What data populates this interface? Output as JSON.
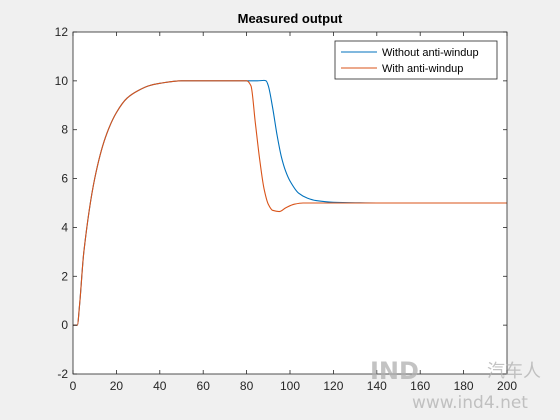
{
  "chart_data": {
    "type": "line",
    "title": "Measured output",
    "xlabel": "",
    "ylabel": "",
    "xlim": [
      0,
      200
    ],
    "ylim": [
      -2,
      12
    ],
    "x_ticks": [
      0,
      20,
      40,
      60,
      80,
      100,
      120,
      140,
      160,
      180,
      200
    ],
    "y_ticks": [
      -2,
      0,
      2,
      4,
      6,
      8,
      10,
      12
    ],
    "grid": false,
    "legend_position": "top-right",
    "series": [
      {
        "name": "Without anti-windup",
        "color": "#0072BD",
        "x": [
          0,
          2,
          3,
          5,
          10,
          15,
          20,
          25,
          30,
          35,
          40,
          50,
          60,
          70,
          80,
          85,
          88,
          89,
          90,
          92,
          94,
          96,
          98,
          100,
          104,
          108,
          112,
          120,
          130,
          140,
          150,
          200
        ],
        "y": [
          0,
          0,
          0.8,
          3.0,
          6.0,
          7.7,
          8.7,
          9.3,
          9.6,
          9.8,
          9.9,
          10.0,
          10.0,
          10.0,
          10.0,
          10.0,
          10.02,
          10.0,
          9.8,
          8.9,
          7.8,
          6.9,
          6.3,
          5.9,
          5.4,
          5.2,
          5.1,
          5.03,
          5.01,
          5.0,
          5.0,
          5.0
        ]
      },
      {
        "name": "With anti-windup",
        "color": "#D95319",
        "x": [
          0,
          2,
          3,
          5,
          10,
          15,
          20,
          25,
          30,
          35,
          40,
          50,
          60,
          70,
          80,
          82,
          84,
          86,
          88,
          90,
          92,
          95,
          98,
          102,
          106,
          110,
          120,
          140,
          200
        ],
        "y": [
          0,
          0,
          0.8,
          3.0,
          6.0,
          7.7,
          8.7,
          9.3,
          9.6,
          9.8,
          9.9,
          10.0,
          10.0,
          10.0,
          10.0,
          9.8,
          8.3,
          6.8,
          5.6,
          4.95,
          4.7,
          4.65,
          4.8,
          4.95,
          5.0,
          5.0,
          5.0,
          5.0,
          5.0
        ]
      }
    ]
  },
  "watermark": {
    "logo_text": "IND",
    "cn_text": "汽车人",
    "url_text": "www.ind4.net"
  }
}
